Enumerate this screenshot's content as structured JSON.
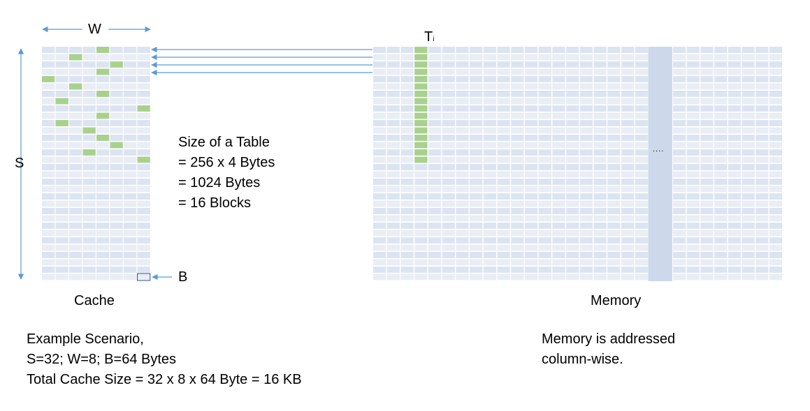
{
  "cache": {
    "label": "Cache",
    "sets": 32,
    "ways": 8,
    "w_label": "W",
    "s_label": "S",
    "b_label": "B",
    "highlight_way_by_set": [
      4,
      2,
      5,
      4,
      0,
      2,
      4,
      1,
      7,
      4,
      1,
      3,
      4,
      5,
      3,
      7
    ]
  },
  "memory": {
    "label": "Memory",
    "rows": 32,
    "cols": 29,
    "table_label_main": "T",
    "table_label_sub": "i",
    "table_column": 3,
    "table_blocks": 16,
    "ellipsis_column": 20,
    "ellipsis": "....",
    "note": [
      "Memory is addressed",
      "column-wise."
    ]
  },
  "table_size": [
    "Size of a Table",
    "= 256 x 4 Bytes",
    "= 1024 Bytes",
    "= 16 Blocks"
  ],
  "scenario": [
    "Example Scenario,",
    "S=32; W=8; B=64 Bytes",
    "Total Cache Size = 32 x 8 x 64 Byte = 16 KB"
  ],
  "colors": {
    "cell": "#dde4f1",
    "cell_alt": "#e9edf5",
    "gap": "#ffffff",
    "highlight": "#a9d18e",
    "arrow": "#5b9bd5",
    "highlight_column": "#cdd8ea",
    "block_outline": "#2f5496"
  }
}
